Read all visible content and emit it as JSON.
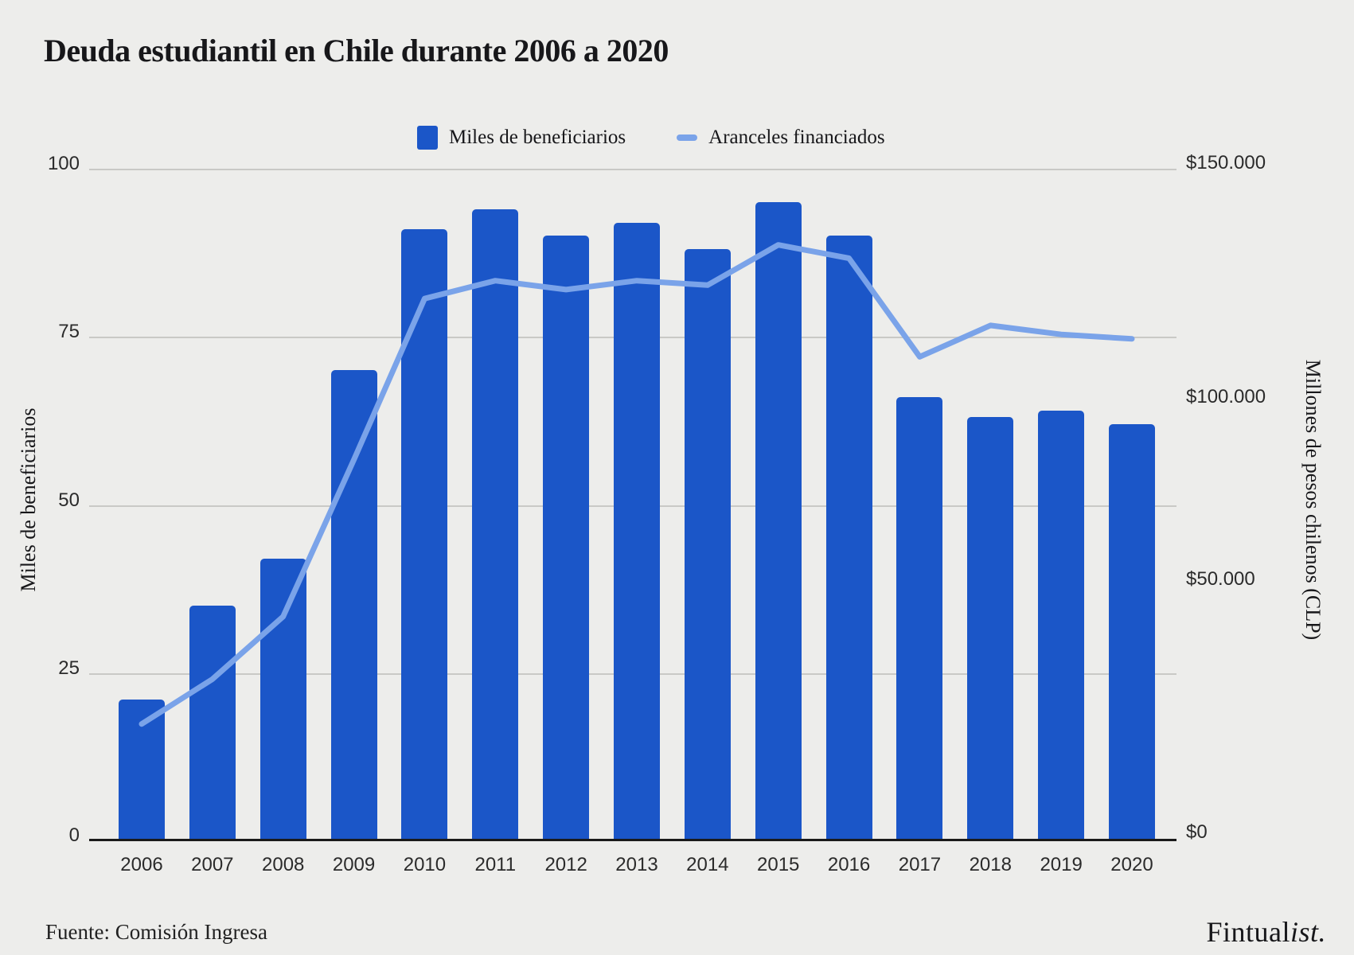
{
  "title": "Deuda estudiantil en Chile durante 2006 a 2020",
  "legend": {
    "items": [
      {
        "label": "Miles de beneficiarios",
        "swatch": "square",
        "color": "#1B56C8"
      },
      {
        "label": "Aranceles financiados",
        "swatch": "line",
        "color": "#7AA3E9"
      }
    ]
  },
  "axes": {
    "left": {
      "title": "Miles de beneficiarios",
      "tick_labels": [
        "100",
        "75",
        "50",
        "25",
        "0"
      ]
    },
    "right": {
      "title": "Millones de pesos chilenos (CLP)",
      "tick_labels": [
        "$150.000",
        "$100.000",
        "$50.000",
        "$0"
      ]
    }
  },
  "footer": {
    "source": "Fuente: Comisión Ingresa",
    "brand": "Fintual",
    "brand_italic": "ist."
  },
  "colors": {
    "bar": "#1B56C8",
    "line": "#7AA3E9",
    "background": "#EDEDEB",
    "grid": "#C9C9C6",
    "axis_line": "#1A1A1A",
    "text": "#17171A",
    "tick_text": "#2B2B2B"
  },
  "chart_data": {
    "type": "bar",
    "title": "Deuda estudiantil en Chile durante 2006 a 2020",
    "categories": [
      "2006",
      "2007",
      "2008",
      "2009",
      "2010",
      "2011",
      "2012",
      "2013",
      "2014",
      "2015",
      "2016",
      "2017",
      "2018",
      "2019",
      "2020"
    ],
    "series": [
      {
        "name": "Miles de beneficiarios",
        "type": "bar",
        "axis": "left",
        "values": [
          21,
          35,
          42,
          70,
          91,
          94,
          90,
          92,
          88,
          95,
          90,
          66,
          63,
          64,
          62
        ]
      },
      {
        "name": "Aranceles financiados",
        "type": "line",
        "axis": "right",
        "values": [
          26000,
          36000,
          50000,
          85000,
          121000,
          125000,
          123000,
          125000,
          124000,
          133000,
          130000,
          108000,
          115000,
          113000,
          112000
        ]
      }
    ],
    "axes": {
      "left": {
        "label": "Miles de beneficiarios",
        "range": [
          0,
          100
        ],
        "ticks": [
          0,
          25,
          50,
          75,
          100
        ]
      },
      "right": {
        "label": "Millones de pesos chilenos (CLP)",
        "range": [
          0,
          150000
        ],
        "ticks": [
          0,
          50000,
          100000,
          150000
        ]
      }
    },
    "grid": true,
    "legend_position": "top",
    "source": "Fuente: Comisión Ingresa"
  }
}
